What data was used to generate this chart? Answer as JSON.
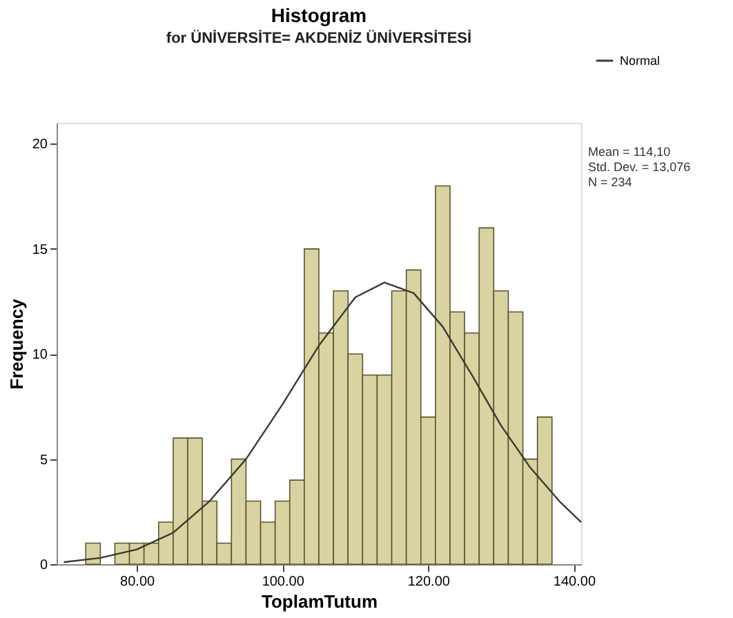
{
  "chart_data": {
    "type": "histogram",
    "title": "Histogram",
    "subtitle": "for ÜNİVERSİTE= AKDENİZ ÜNİVERSİTESİ",
    "xlabel": "ToplamTutum",
    "ylabel": "Frequency",
    "bins": [
      73,
      75,
      77,
      79,
      81,
      83,
      85,
      87,
      89,
      91,
      93,
      95,
      97,
      99,
      101,
      103,
      105,
      107,
      109,
      111,
      113,
      115,
      117,
      119,
      121,
      123,
      125,
      127,
      129,
      131,
      133,
      135,
      137
    ],
    "values": [
      1,
      0,
      1,
      1,
      1,
      2,
      6,
      6,
      3,
      1,
      5,
      3,
      2,
      3,
      4,
      15,
      11,
      13,
      10,
      9,
      9,
      13,
      14,
      7,
      18,
      12,
      11,
      16,
      13,
      12,
      5,
      7
    ],
    "color": "#d8d3a0",
    "series": [
      {
        "name": "Normal",
        "type": "line",
        "color": "#3a3a30",
        "x": [
          70,
          75,
          80,
          85,
          90,
          95,
          100,
          105,
          110,
          114,
          118,
          122,
          126,
          130,
          134,
          138,
          141
        ],
        "values": [
          0.1,
          0.3,
          0.7,
          1.5,
          3.0,
          5.0,
          7.6,
          10.4,
          12.7,
          13.4,
          12.9,
          11.3,
          9.0,
          6.6,
          4.6,
          3.0,
          2.0
        ]
      }
    ],
    "xlim": [
      69,
      141
    ],
    "ylim": [
      0,
      21
    ],
    "xticks": [
      {
        "value": 80,
        "label": "80.00"
      },
      {
        "value": 100,
        "label": "100.00"
      },
      {
        "value": 120,
        "label": "120.00"
      },
      {
        "value": 140,
        "label": "140.00"
      }
    ],
    "yticks": [
      0,
      5,
      10,
      15,
      20
    ],
    "annotations": [
      "Mean = 114,10",
      "Std. Dev. = 13,076",
      "N = 234"
    ],
    "legend": "top right",
    "grid": false
  }
}
